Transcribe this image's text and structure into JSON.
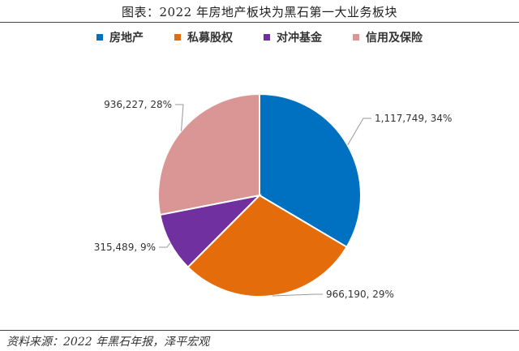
{
  "title": "图表：2022 年房地产板块为黑石第一大业务板块",
  "source": "资料来源：2022 年黑石年报，泽平宏观",
  "chart_data": {
    "type": "pie",
    "categories": [
      "房地产",
      "私募股权",
      "对冲基金",
      "信用及保险"
    ],
    "values": [
      1117749,
      966190,
      315489,
      936227
    ],
    "percents": [
      34,
      29,
      9,
      28
    ],
    "data_labels": [
      "1,117,749, 34%",
      "966,190, 29%",
      "315,489, 9%",
      "936,227, 28%"
    ],
    "colors": [
      "#0070C0",
      "#E46C0A",
      "#7030A0",
      "#D99694"
    ],
    "legend_position": "top"
  }
}
